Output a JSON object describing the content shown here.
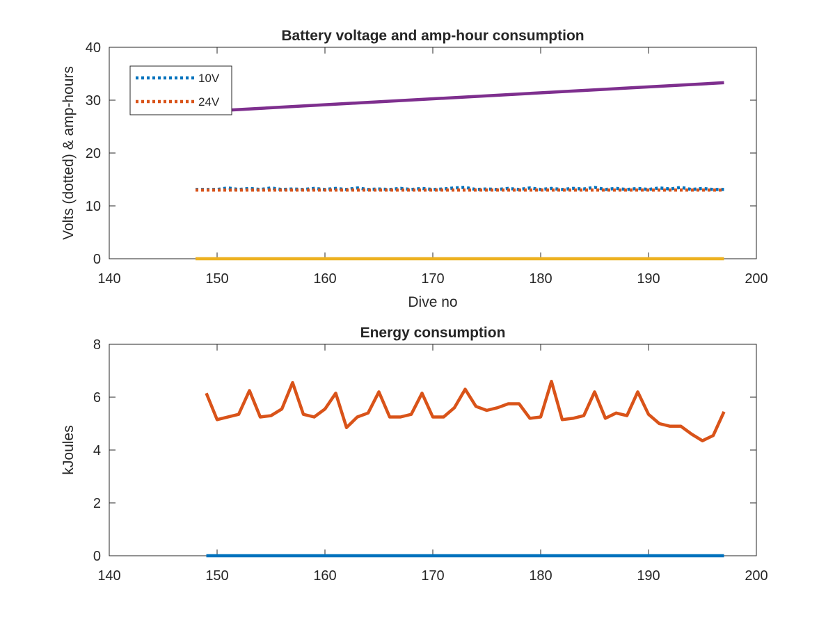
{
  "chart_data": [
    {
      "type": "line",
      "title": "Battery voltage and amp-hour consumption",
      "xlabel": "Dive no",
      "ylabel": "Volts (dotted) & amp-hours",
      "xlim": [
        140,
        200
      ],
      "ylim": [
        0,
        40
      ],
      "xticks": [
        140,
        150,
        160,
        170,
        180,
        190,
        200
      ],
      "yticks": [
        0,
        10,
        20,
        30,
        40
      ],
      "grid": false,
      "legend_position": "top-left",
      "series": [
        {
          "name": "10V",
          "style": "dotted",
          "color": "#0072BD",
          "x": [
            148,
            150,
            151,
            152,
            153,
            154,
            155,
            156,
            157,
            158,
            159,
            160,
            161,
            162,
            163,
            164,
            165,
            166,
            167,
            168,
            169,
            170,
            171,
            172,
            173,
            174,
            175,
            176,
            177,
            178,
            179,
            180,
            181,
            182,
            183,
            184,
            185,
            186,
            187,
            188,
            189,
            190,
            191,
            192,
            193,
            194,
            195,
            196,
            197
          ],
          "y": [
            13.1,
            13.1,
            13.4,
            13.1,
            13.3,
            13.1,
            13.4,
            13.1,
            13.2,
            13.1,
            13.3,
            13.1,
            13.3,
            13.1,
            13.4,
            13.1,
            13.2,
            13.1,
            13.3,
            13.1,
            13.3,
            13.1,
            13.2,
            13.4,
            13.5,
            13.1,
            13.2,
            13.1,
            13.3,
            13.1,
            13.4,
            13.1,
            13.3,
            13.1,
            13.3,
            13.2,
            13.5,
            13.1,
            13.3,
            13.1,
            13.3,
            13.1,
            13.4,
            13.2,
            13.5,
            13.1,
            13.3,
            13.1,
            13.1
          ]
        },
        {
          "name": "24V",
          "style": "dotted",
          "color": "#D95319",
          "x": [
            148,
            197
          ],
          "y": [
            13.0,
            13.0
          ]
        },
        {
          "name": "",
          "style": "solid",
          "color": "#EDB120",
          "x": [
            148,
            197
          ],
          "y": [
            0,
            0
          ]
        },
        {
          "name": "",
          "style": "solid",
          "color": "#7E2F8E",
          "x": [
            150,
            197
          ],
          "y": [
            28.0,
            33.3
          ]
        }
      ]
    },
    {
      "type": "line",
      "title": "Energy consumption",
      "xlabel": "",
      "ylabel": "kJoules",
      "xlim": [
        140,
        200
      ],
      "ylim": [
        0,
        8
      ],
      "xticks": [
        140,
        150,
        160,
        170,
        180,
        190,
        200
      ],
      "yticks": [
        0,
        2,
        4,
        6,
        8
      ],
      "grid": false,
      "series": [
        {
          "name": "",
          "style": "solid",
          "color": "#0072BD",
          "x": [
            149,
            197
          ],
          "y": [
            0,
            0
          ]
        },
        {
          "name": "",
          "style": "solid",
          "color": "#D95319",
          "x": [
            149,
            150,
            152,
            153,
            154,
            155,
            156,
            157,
            158,
            159,
            160,
            161,
            162,
            163,
            164,
            165,
            166,
            167,
            168,
            169,
            170,
            171,
            172,
            173,
            174,
            175,
            176,
            177,
            178,
            179,
            180,
            181,
            182,
            183,
            184,
            185,
            186,
            187,
            188,
            189,
            190,
            191,
            192,
            193,
            194,
            195,
            196,
            197
          ],
          "y": [
            6.15,
            5.15,
            5.35,
            6.25,
            5.25,
            5.3,
            5.55,
            6.55,
            5.35,
            5.25,
            5.55,
            6.15,
            4.85,
            5.25,
            5.4,
            6.2,
            5.25,
            5.25,
            5.35,
            6.15,
            5.25,
            5.25,
            5.6,
            6.3,
            5.65,
            5.5,
            5.6,
            5.75,
            5.75,
            5.2,
            5.25,
            6.6,
            5.15,
            5.2,
            5.3,
            6.2,
            5.2,
            5.4,
            5.3,
            6.2,
            5.35,
            5.0,
            4.9,
            4.9,
            4.6,
            4.35,
            4.55,
            5.45
          ]
        }
      ]
    }
  ]
}
